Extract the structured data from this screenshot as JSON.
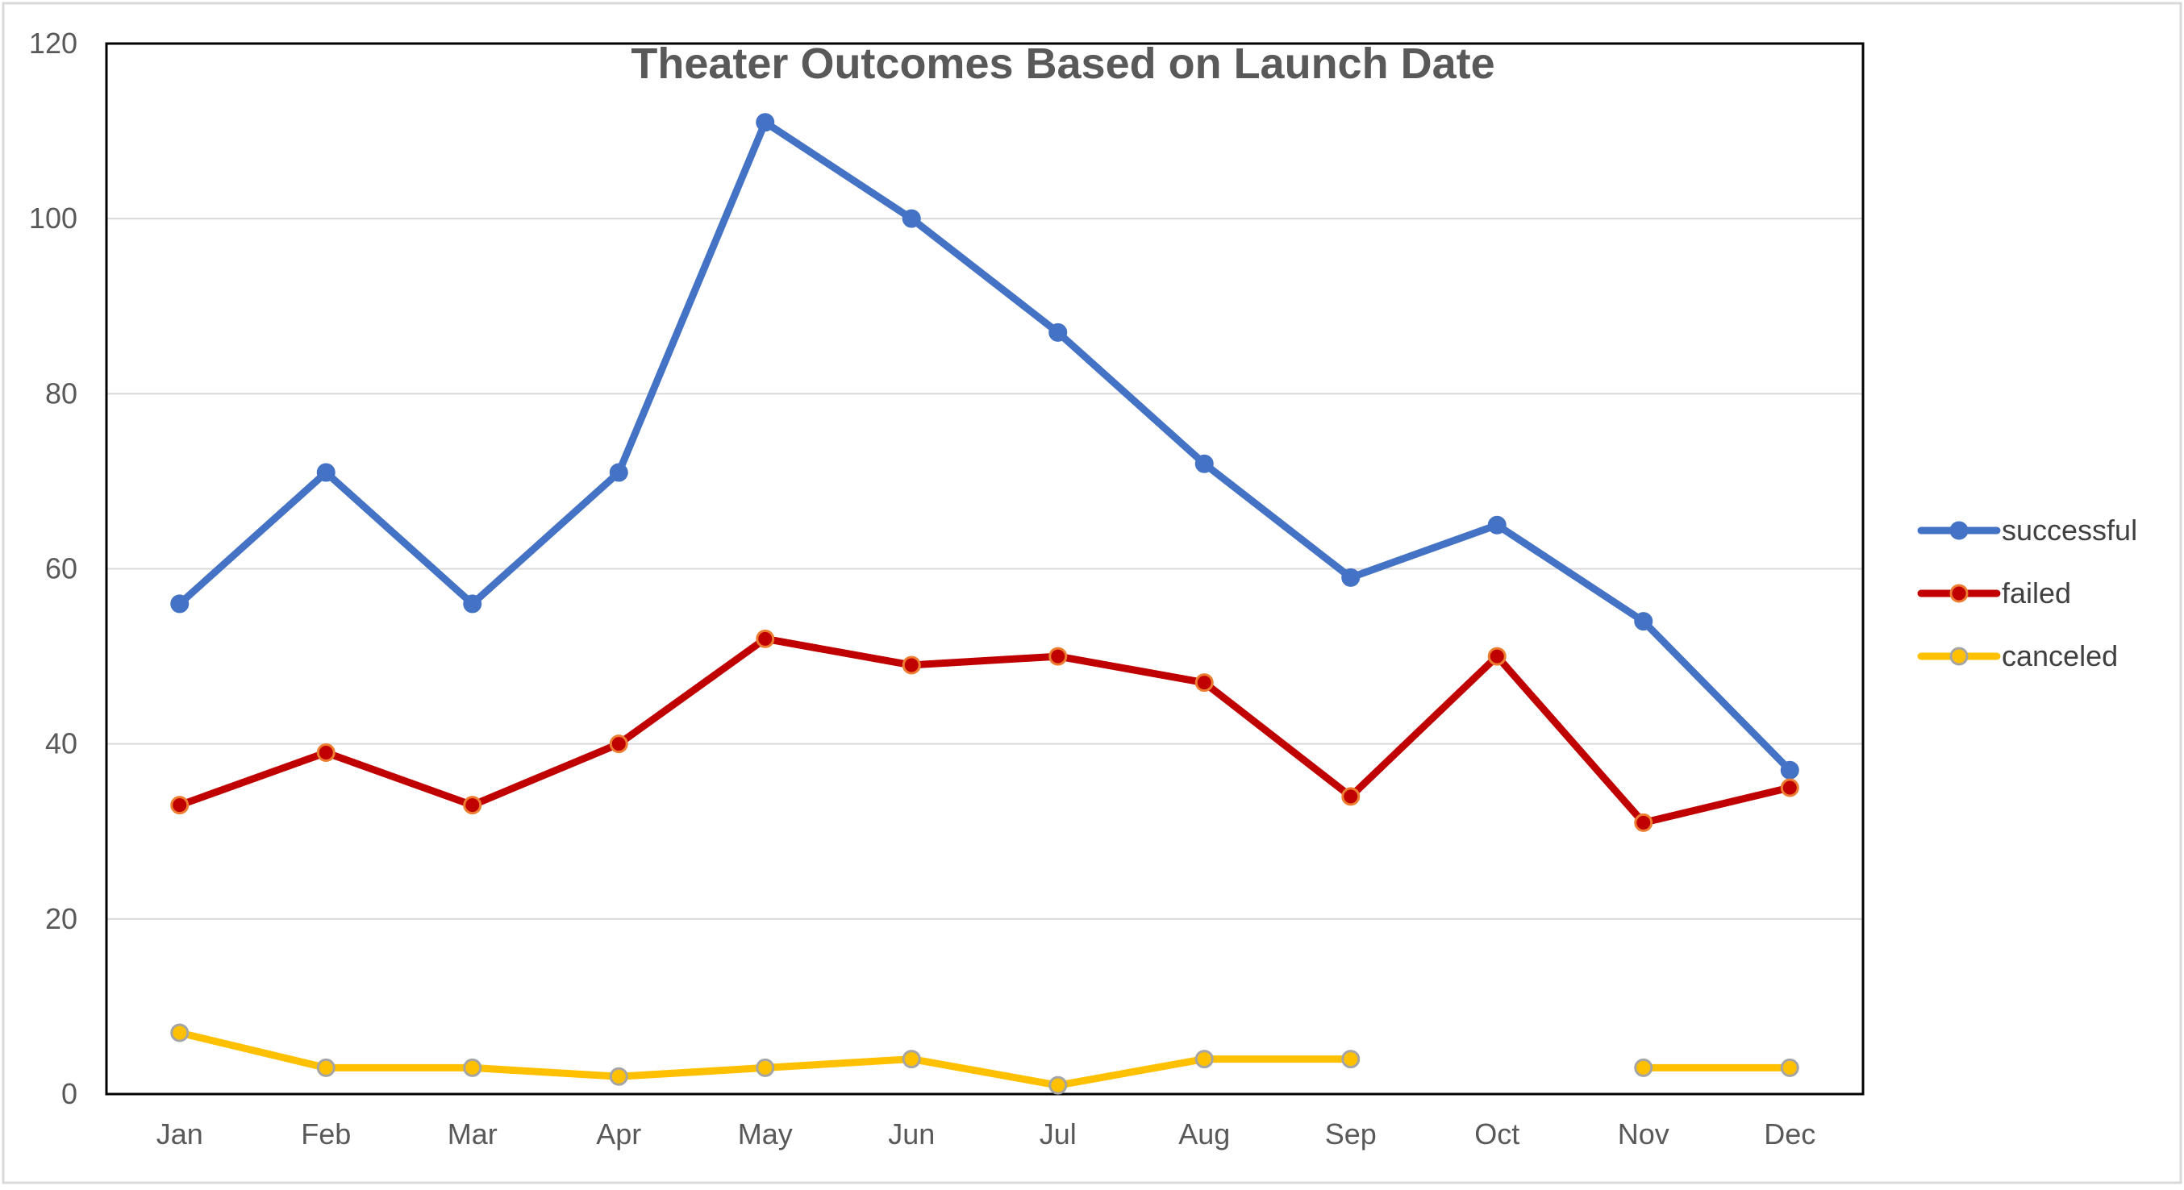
{
  "chart_data": {
    "type": "line",
    "title": "Theater Outcomes Based on Launch Date",
    "xlabel": "",
    "ylabel": "",
    "categories": [
      "Jan",
      "Feb",
      "Mar",
      "Apr",
      "May",
      "Jun",
      "Jul",
      "Aug",
      "Sep",
      "Oct",
      "Nov",
      "Dec"
    ],
    "ylim": [
      0,
      120
    ],
    "yticks": [
      0,
      20,
      40,
      60,
      80,
      100,
      120
    ],
    "grid": true,
    "legend_position": "right",
    "series": [
      {
        "name": "successful",
        "color": "#4472C4",
        "marker_fill": "#4472C4",
        "marker_edge": "#4472C4",
        "values": [
          56,
          71,
          56,
          71,
          111,
          100,
          87,
          72,
          59,
          65,
          54,
          37
        ]
      },
      {
        "name": "failed",
        "color": "#C00000",
        "marker_fill": "#C00000",
        "marker_edge": "#ED7D31",
        "values": [
          33,
          39,
          33,
          40,
          52,
          49,
          50,
          47,
          34,
          50,
          31,
          35
        ]
      },
      {
        "name": "canceled",
        "color": "#FFC000",
        "marker_fill": "#FFC000",
        "marker_edge": "#A5A5A5",
        "values": [
          7,
          3,
          3,
          2,
          3,
          4,
          1,
          4,
          4,
          null,
          3,
          3
        ]
      }
    ]
  }
}
